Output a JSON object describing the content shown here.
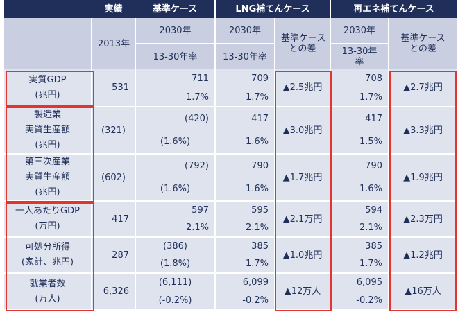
{
  "header": {
    "empty": "",
    "actual": "実績",
    "base_case": "基準ケース",
    "lng_case": "LNG補てんケース",
    "renew_case": "再エネ補てんケース"
  },
  "subheader": {
    "year_2013": "2013年",
    "year_2030": "2030年",
    "rate_13_30": "13-30年率",
    "rate_13_30_a": "13-30",
    "rate_13_30_b": "年率",
    "rate_l1": "13-30年",
    "rate_l2": "率",
    "diff_l1": "基準ケース",
    "diff_l2": "との差"
  },
  "rows": [
    {
      "label1": "実質GDP",
      "label2": "(兆円)",
      "label3": "",
      "actual": "531",
      "base_2030": "711",
      "base_rate": "1.7%",
      "lng_2030": "709",
      "lng_rate": "1.7%",
      "lng_diff": "▲2.5兆円",
      "ren_2030": "708",
      "ren_rate": "1.7%",
      "ren_diff": "▲2.7兆円"
    },
    {
      "label1": "製造業",
      "label2": "実質生産額",
      "label3": "(兆円)",
      "actual": "(321)",
      "base_2030": "(420)",
      "base_rate": "(1.6%)",
      "lng_2030": "417",
      "lng_rate": "1.6%",
      "lng_diff": "▲3.0兆円",
      "ren_2030": "417",
      "ren_rate": "1.5%",
      "ren_diff": "▲3.3兆円"
    },
    {
      "label1": "第三次産業",
      "label2": "実質生産額",
      "label3": "(兆円)",
      "actual": "(602)",
      "base_2030": "(792)",
      "base_rate": "(1.6%)",
      "lng_2030": "790",
      "lng_rate": "1.6%",
      "lng_diff": "▲1.7兆円",
      "ren_2030": "790",
      "ren_rate": "1.6%",
      "ren_diff": "▲1.9兆円"
    },
    {
      "label1": "一人あたりGDP",
      "label2": "(万円)",
      "label3": "",
      "actual": "417",
      "base_2030": "597",
      "base_rate": "2.1%",
      "lng_2030": "595",
      "lng_rate": "2.1%",
      "lng_diff": "▲2.1万円",
      "ren_2030": "594",
      "ren_rate": "2.1%",
      "ren_diff": "▲2.3万円"
    },
    {
      "label1": "可処分所得",
      "label2": "(家計、兆円)",
      "label3": "",
      "actual": "287",
      "base_2030": "(386)",
      "base_rate": "(1.8%)",
      "lng_2030": "385",
      "lng_rate": "1.7%",
      "lng_diff": "▲1.0兆円",
      "ren_2030": "385",
      "ren_rate": "1.7%",
      "ren_diff": "▲1.2兆円"
    },
    {
      "label1": "就業者数",
      "label2": "(万人)",
      "label3": "",
      "actual": "6,326",
      "base_2030": "(6,111)",
      "base_rate": "(-0.2%)",
      "lng_2030": "6,099",
      "lng_rate": "-0.2%",
      "lng_diff": "▲12万人",
      "ren_2030": "6,095",
      "ren_rate": "-0.2%",
      "ren_diff": "▲16万人"
    }
  ],
  "colors": {
    "header_bg": "#1f2f5a",
    "subheader_bg": "#c9cfe0",
    "body_bg": "#dfe3ee",
    "highlight": "#e3342f"
  }
}
